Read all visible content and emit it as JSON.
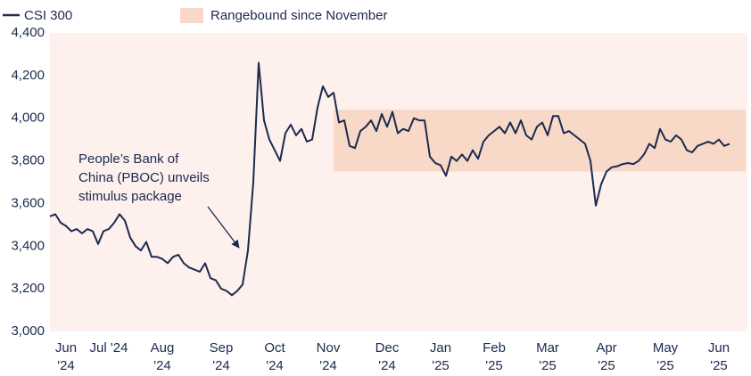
{
  "chart_data": {
    "type": "line",
    "series": [
      {
        "name": "CSI 300",
        "color": "#1b2a4e",
        "values": [
          3540,
          3550,
          3510,
          3495,
          3470,
          3480,
          3460,
          3480,
          3470,
          3410,
          3470,
          3480,
          3510,
          3550,
          3520,
          3440,
          3400,
          3380,
          3420,
          3350,
          3350,
          3340,
          3320,
          3350,
          3360,
          3320,
          3300,
          3290,
          3280,
          3320,
          3250,
          3240,
          3200,
          3190,
          3170,
          3190,
          3220,
          3380,
          3700,
          4260,
          3990,
          3900,
          3850,
          3800,
          3930,
          3970,
          3920,
          3950,
          3890,
          3900,
          4050,
          4150,
          4100,
          4120,
          3980,
          3990,
          3870,
          3860,
          3940,
          3960,
          3990,
          3940,
          4020,
          3960,
          4030,
          3930,
          3950,
          3940,
          4000,
          3990,
          3990,
          3820,
          3790,
          3780,
          3730,
          3820,
          3800,
          3830,
          3800,
          3850,
          3810,
          3890,
          3920,
          3940,
          3960,
          3930,
          3980,
          3930,
          3990,
          3920,
          3900,
          3960,
          3980,
          3920,
          4010,
          4010,
          3930,
          3940,
          3920,
          3900,
          3880,
          3800,
          3590,
          3690,
          3750,
          3770,
          3775,
          3785,
          3790,
          3785,
          3800,
          3830,
          3880,
          3860,
          3950,
          3900,
          3890,
          3920,
          3900,
          3850,
          3840,
          3870,
          3880,
          3890,
          3880,
          3900,
          3870,
          3880
        ]
      }
    ],
    "band": {
      "name": "Rangebound since November",
      "color": "#f8d9c8",
      "x0": 53,
      "x1": 130,
      "y0": 3750,
      "y1": 4040
    },
    "xlim": [
      0,
      130
    ],
    "xticks": [
      {
        "value": 3,
        "label": "Jun '24"
      },
      {
        "value": 11,
        "label": "Jul '24"
      },
      {
        "value": 21,
        "label": "Aug '24"
      },
      {
        "value": 32,
        "label": "Sep '24"
      },
      {
        "value": 42,
        "label": "Oct '24"
      },
      {
        "value": 52,
        "label": "Nov '24"
      },
      {
        "value": 63,
        "label": "Dec '24"
      },
      {
        "value": 73,
        "label": "Jan '25"
      },
      {
        "value": 83,
        "label": "Feb '25"
      },
      {
        "value": 93,
        "label": "Mar '25"
      },
      {
        "value": 104,
        "label": "Apr '25"
      },
      {
        "value": 115,
        "label": "May '25"
      },
      {
        "value": 125,
        "label": "Jun '25"
      }
    ],
    "ylim": [
      3000,
      4400
    ],
    "yticks": [
      {
        "value": 3000,
        "label": "3,000"
      },
      {
        "value": 3200,
        "label": "3,200"
      },
      {
        "value": 3400,
        "label": "3,400"
      },
      {
        "value": 3600,
        "label": "3,600"
      },
      {
        "value": 3800,
        "label": "3,800"
      },
      {
        "value": 4000,
        "label": "4,000"
      },
      {
        "value": 4200,
        "label": "4,200"
      },
      {
        "value": 4400,
        "label": "4,400"
      }
    ],
    "plot_background": "#fdf0ed",
    "grid": false,
    "annotation": {
      "lines": [
        "People’s Bank of",
        "China (PBOC) unveils",
        "stimulus package"
      ]
    }
  }
}
